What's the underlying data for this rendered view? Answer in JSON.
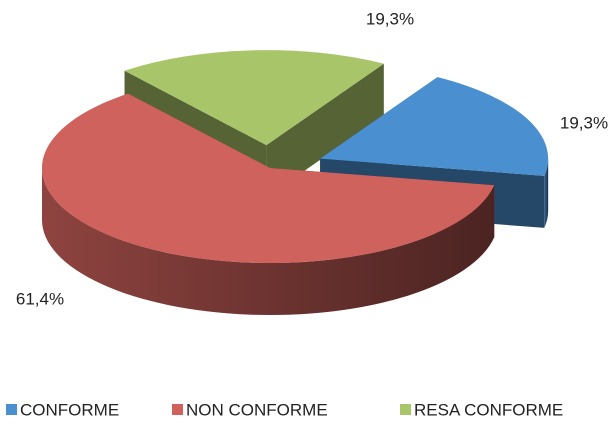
{
  "chart_data": {
    "type": "pie",
    "categories": [
      "CONFORME",
      "NON CONFORME",
      "RESA CONFORME"
    ],
    "values": [
      19.3,
      61.4,
      19.3
    ],
    "value_labels": [
      "19,3%",
      "61,4%",
      "19,3%"
    ],
    "colors": [
      "#4a8fcf",
      "#d0625d",
      "#a9c56a"
    ],
    "legend": "bottom"
  }
}
